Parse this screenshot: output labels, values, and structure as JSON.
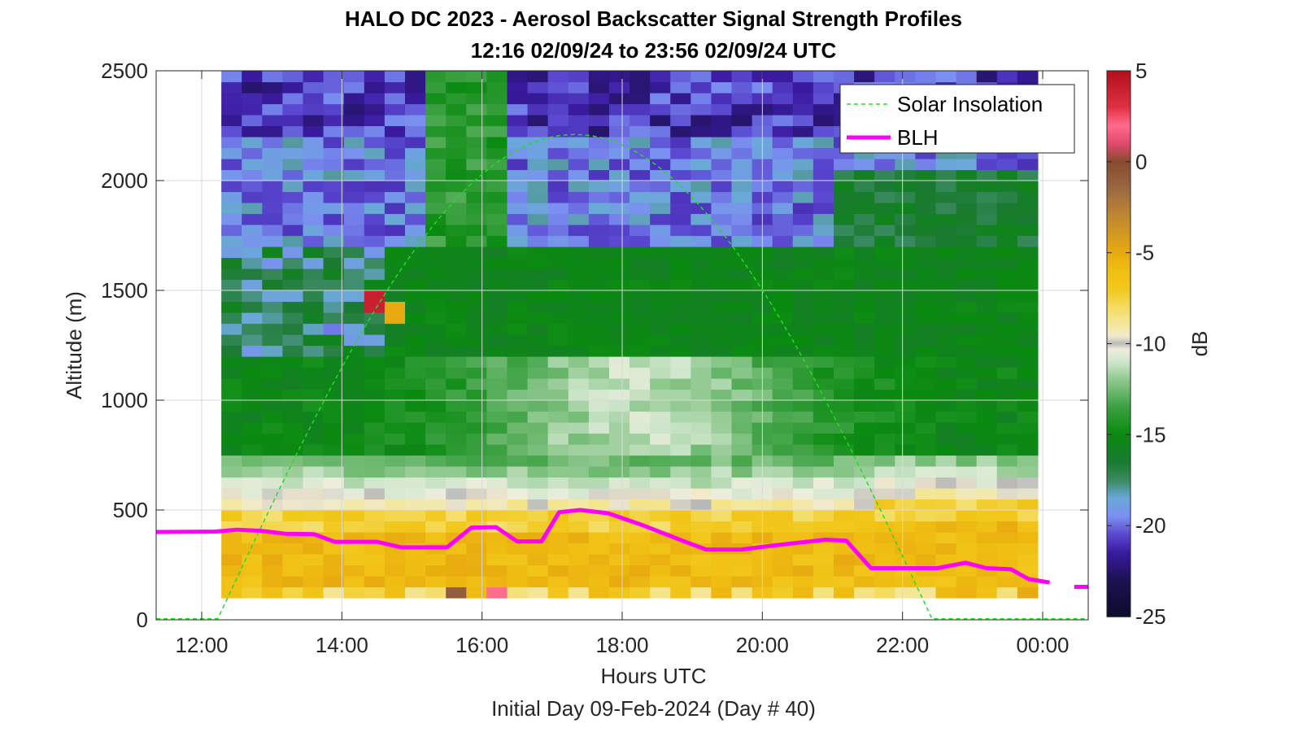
{
  "chart_data": {
    "type": "heatmap",
    "title": "HALO DC 2023 - Aerosol Backscatter Signal Strength Profiles",
    "subtitle": "12:16 02/09/24 to 23:56 02/09/24  UTC",
    "xlabel": "Hours UTC",
    "xlabel2": "Initial Day 09-Feb-2024 (Day # 40)",
    "ylabel": "Altitude (m)",
    "colorbar_label": "dB",
    "xlim": [
      11.35,
      24.65
    ],
    "ylim": [
      0,
      2500
    ],
    "x_ticks": [
      "12:00",
      "14:00",
      "16:00",
      "18:00",
      "20:00",
      "22:00",
      "00:00"
    ],
    "y_ticks": [
      "0",
      "500",
      "1000",
      "1500",
      "2000",
      "2500"
    ],
    "colorbar_ticks": [
      "5",
      "0",
      "-5",
      "-10",
      "-15",
      "-20",
      "-25"
    ],
    "clim": [
      -25,
      5
    ],
    "grid": true,
    "legend": {
      "position": "top-right",
      "entries": [
        {
          "label": "Solar Insolation",
          "color": "#22dd22",
          "style": "dashed"
        },
        {
          "label": "BLH",
          "color": "#ff00ff",
          "style": "solid"
        }
      ]
    },
    "heatmap_extent": {
      "x_start": 12.28,
      "x_end": 23.93,
      "y_start": 100,
      "y_end": 2500
    },
    "blh_series": [
      {
        "x": 11.35,
        "y": 400
      },
      {
        "x": 12.2,
        "y": 402
      },
      {
        "x": 12.5,
        "y": 410
      },
      {
        "x": 12.85,
        "y": 405
      },
      {
        "x": 13.2,
        "y": 392
      },
      {
        "x": 13.6,
        "y": 390
      },
      {
        "x": 13.9,
        "y": 355
      },
      {
        "x": 14.5,
        "y": 355
      },
      {
        "x": 14.85,
        "y": 330
      },
      {
        "x": 15.5,
        "y": 330
      },
      {
        "x": 15.85,
        "y": 420
      },
      {
        "x": 16.2,
        "y": 422
      },
      {
        "x": 16.5,
        "y": 357
      },
      {
        "x": 16.85,
        "y": 357
      },
      {
        "x": 17.1,
        "y": 490
      },
      {
        "x": 17.4,
        "y": 500
      },
      {
        "x": 17.8,
        "y": 485
      },
      {
        "x": 18.3,
        "y": 430
      },
      {
        "x": 18.9,
        "y": 355
      },
      {
        "x": 19.2,
        "y": 320
      },
      {
        "x": 19.7,
        "y": 320
      },
      {
        "x": 20.2,
        "y": 340
      },
      {
        "x": 20.9,
        "y": 365
      },
      {
        "x": 21.2,
        "y": 360
      },
      {
        "x": 21.55,
        "y": 235
      },
      {
        "x": 22.5,
        "y": 235
      },
      {
        "x": 22.9,
        "y": 260
      },
      {
        "x": 23.2,
        "y": 235
      },
      {
        "x": 23.55,
        "y": 230
      },
      {
        "x": 23.8,
        "y": 185
      },
      {
        "x": 24.1,
        "y": 170
      }
    ],
    "blh_series_2": [
      {
        "x": 24.45,
        "y": 150
      },
      {
        "x": 24.65,
        "y": 150
      }
    ],
    "solar_insolation": {
      "night_level": 5,
      "rise_x": 12.23,
      "set_x": 22.42,
      "peak_x": 17.35,
      "peak_y": 2210,
      "shape": "sine"
    }
  }
}
